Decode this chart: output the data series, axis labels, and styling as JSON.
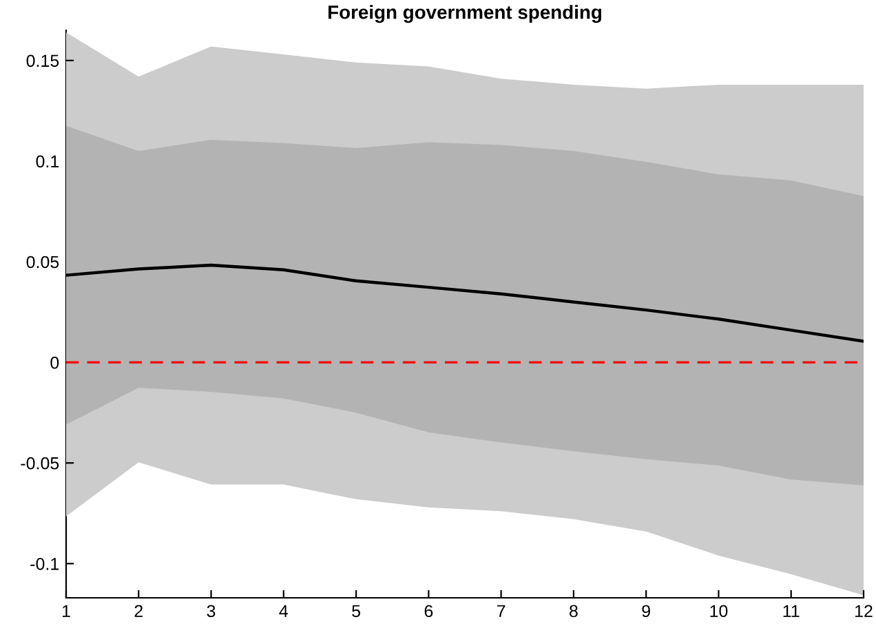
{
  "chart_data": {
    "type": "line",
    "title": "Foreign government spending",
    "x": [
      1,
      2,
      3,
      4,
      5,
      6,
      7,
      8,
      9,
      10,
      11,
      12
    ],
    "series": [
      {
        "values": [
          null,
          null,
          null,
          null,
          null,
          null,
          null,
          null,
          null,
          null,
          null,
          null
        ],
        "lower": [
          -0.0765,
          -0.0497,
          -0.0607,
          -0.0607,
          -0.068,
          -0.0721,
          -0.074,
          -0.0779,
          -0.0841,
          -0.096,
          -0.1053,
          -0.1157
        ],
        "upper": [
          0.164,
          0.142,
          0.157,
          0.153,
          0.149,
          0.147,
          0.141,
          0.138,
          0.136,
          0.138,
          0.138,
          0.138
        ]
      },
      {
        "color": "#000000",
        "values": [
          0.0433,
          0.0464,
          0.0483,
          0.046,
          0.0405,
          0.0373,
          0.034,
          0.03,
          0.026,
          0.0215,
          0.016,
          0.0105
        ],
        "lower": [
          -0.0309,
          -0.0126,
          -0.0147,
          -0.0179,
          -0.025,
          -0.0348,
          -0.0398,
          -0.0442,
          -0.0481,
          -0.0513,
          -0.0582,
          -0.0611
        ],
        "upper": [
          0.1175,
          0.105,
          0.1106,
          0.109,
          0.1065,
          0.1094,
          0.108,
          0.105,
          0.0996,
          0.0934,
          0.0904,
          0.0826
        ]
      }
    ],
    "ref_lines": [
      {
        "axis": "y",
        "value": 0,
        "color": "#ff0000",
        "line_style": "dashed"
      }
    ],
    "xlim": [
      1,
      12
    ],
    "xticks": [
      1,
      2,
      3,
      4,
      5,
      6,
      7,
      8,
      9,
      10,
      11,
      12
    ],
    "ylim": [
      -0.117,
      0.165
    ],
    "yticks": [
      -0.1,
      -0.05,
      0,
      0.05,
      0.1,
      0.15
    ],
    "grid": false,
    "legend": false
  }
}
